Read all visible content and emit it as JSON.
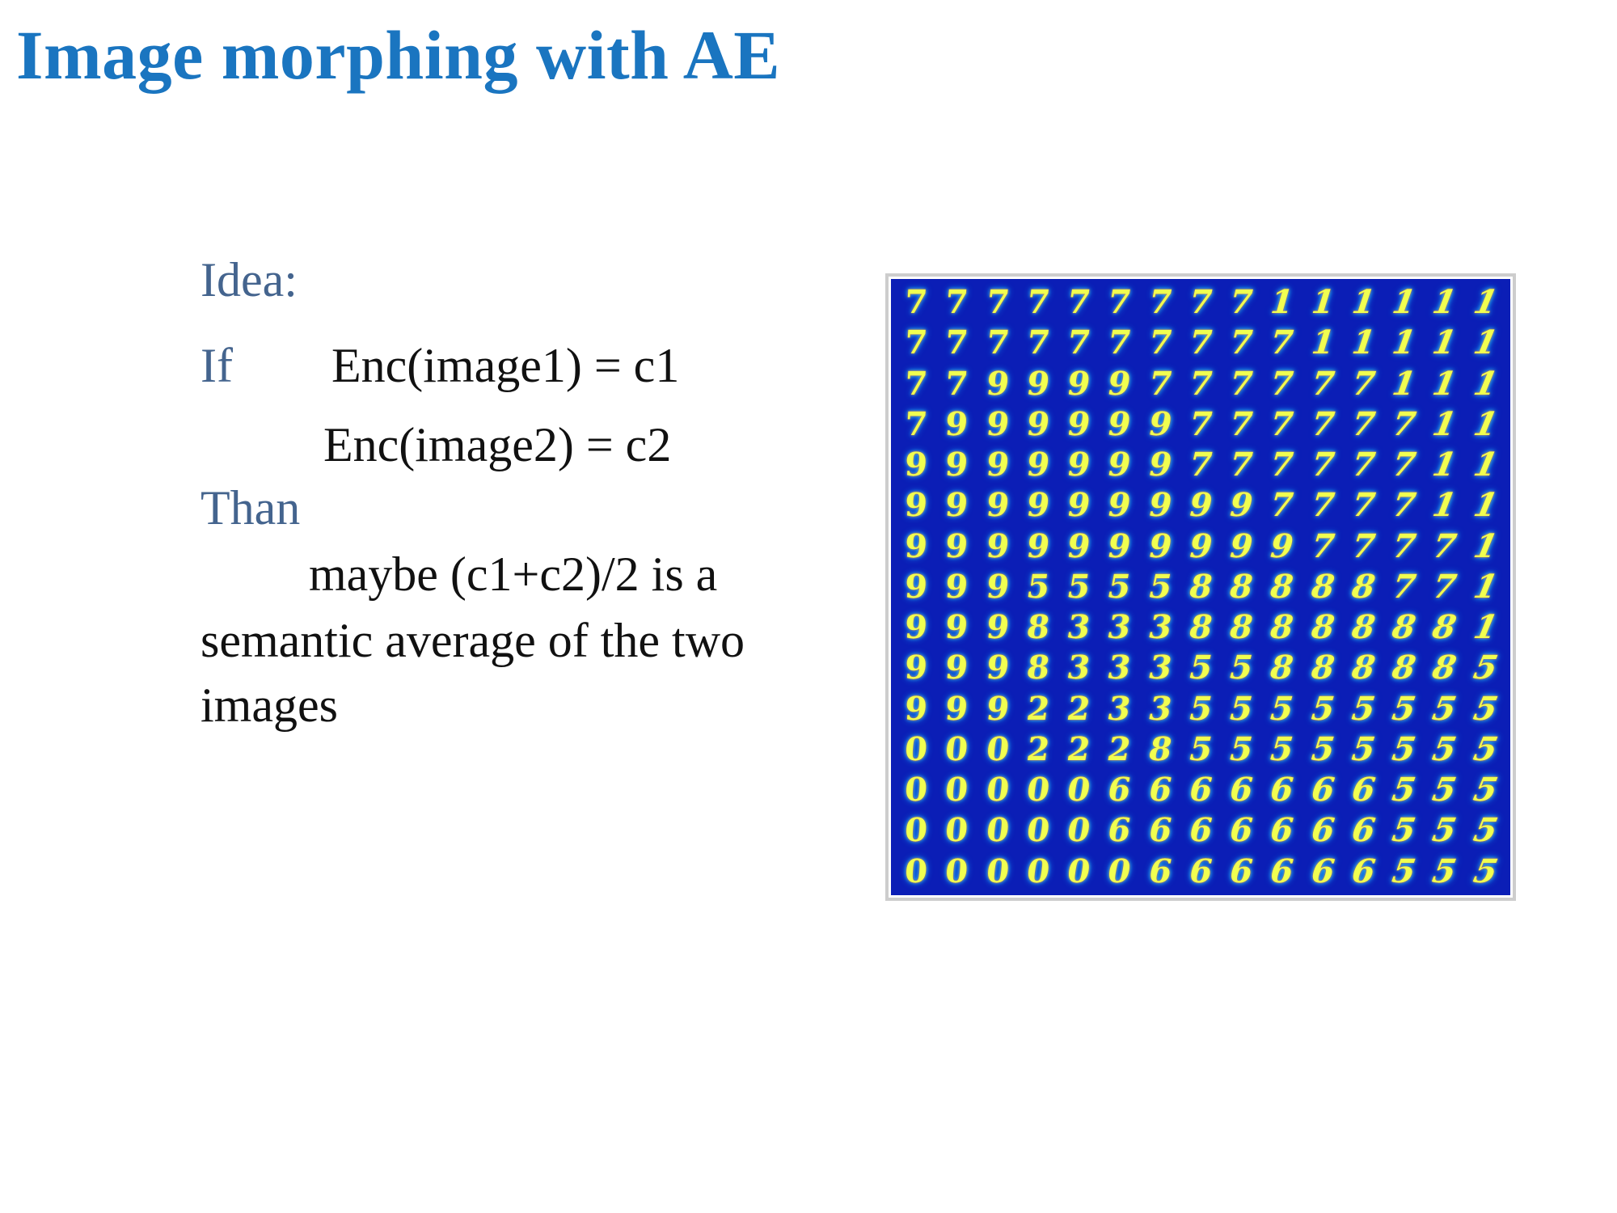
{
  "title": "Image morphing with AE",
  "text": {
    "idea": "Idea:",
    "if_label": "If",
    "enc1": "Enc(image1) = c1",
    "enc2": "Enc(image2) = c2",
    "than_label": "Than",
    "maybe": "maybe (c1+c2)/2 is a",
    "semantic": "semantic average of the two",
    "images": "images"
  },
  "figure": {
    "description_icon": "digit-morph-grid",
    "background_color": "#0b1eb6",
    "rows": [
      [
        "7",
        "7",
        "7",
        "7",
        "7",
        "7",
        "7",
        "7",
        "7",
        "1",
        "1",
        "1",
        "1",
        "1",
        "1"
      ],
      [
        "7",
        "7",
        "7",
        "7",
        "7",
        "7",
        "7",
        "7",
        "7",
        "7",
        "1",
        "1",
        "1",
        "1",
        "1"
      ],
      [
        "7",
        "7",
        "9",
        "9",
        "9",
        "9",
        "7",
        "7",
        "7",
        "7",
        "7",
        "7",
        "1",
        "1",
        "1"
      ],
      [
        "7",
        "9",
        "9",
        "9",
        "9",
        "9",
        "9",
        "7",
        "7",
        "7",
        "7",
        "7",
        "7",
        "1",
        "1"
      ],
      [
        "9",
        "9",
        "9",
        "9",
        "9",
        "9",
        "9",
        "7",
        "7",
        "7",
        "7",
        "7",
        "7",
        "1",
        "1"
      ],
      [
        "9",
        "9",
        "9",
        "9",
        "9",
        "9",
        "9",
        "9",
        "9",
        "7",
        "7",
        "7",
        "7",
        "1",
        "1"
      ],
      [
        "9",
        "9",
        "9",
        "9",
        "9",
        "9",
        "9",
        "9",
        "9",
        "9",
        "7",
        "7",
        "7",
        "7",
        "1"
      ],
      [
        "9",
        "9",
        "9",
        "5",
        "5",
        "5",
        "5",
        "8",
        "8",
        "8",
        "8",
        "8",
        "7",
        "7",
        "1"
      ],
      [
        "9",
        "9",
        "9",
        "8",
        "3",
        "3",
        "3",
        "8",
        "8",
        "8",
        "8",
        "8",
        "8",
        "8",
        "1"
      ],
      [
        "9",
        "9",
        "9",
        "8",
        "3",
        "3",
        "3",
        "5",
        "5",
        "8",
        "8",
        "8",
        "8",
        "8",
        "5"
      ],
      [
        "9",
        "9",
        "9",
        "2",
        "2",
        "3",
        "3",
        "5",
        "5",
        "5",
        "5",
        "5",
        "5",
        "5",
        "5"
      ],
      [
        "0",
        "0",
        "0",
        "2",
        "2",
        "2",
        "8",
        "5",
        "5",
        "5",
        "5",
        "5",
        "5",
        "5",
        "5"
      ],
      [
        "0",
        "0",
        "0",
        "0",
        "0",
        "6",
        "6",
        "6",
        "6",
        "6",
        "6",
        "6",
        "5",
        "5",
        "5"
      ],
      [
        "0",
        "0",
        "0",
        "0",
        "0",
        "6",
        "6",
        "6",
        "6",
        "6",
        "6",
        "6",
        "5",
        "5",
        "5"
      ],
      [
        "0",
        "0",
        "0",
        "0",
        "0",
        "0",
        "6",
        "6",
        "6",
        "6",
        "6",
        "6",
        "5",
        "5",
        "5"
      ]
    ]
  }
}
